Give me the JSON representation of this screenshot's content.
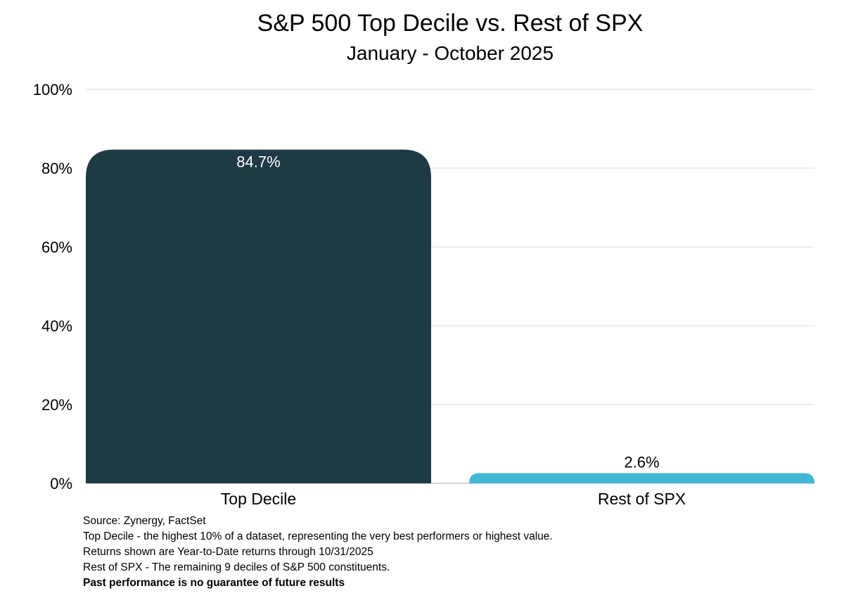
{
  "chart_data": {
    "type": "bar",
    "title": "S&P 500 Top Decile vs. Rest of SPX",
    "subtitle": "January - October 2025",
    "categories": [
      "Top Decile",
      "Rest of SPX"
    ],
    "values": [
      84.7,
      2.6
    ],
    "data_labels": [
      "84.7%",
      "2.6%"
    ],
    "colors": [
      "#1e3a45",
      "#42b7d6"
    ],
    "xlabel": "",
    "ylabel": "",
    "ylim": [
      0,
      100
    ],
    "yticks": [
      0,
      20,
      40,
      60,
      80,
      100
    ],
    "ytick_labels": [
      "0%",
      "20%",
      "40%",
      "60%",
      "80%",
      "100%"
    ],
    "grid": true,
    "legend": "none"
  },
  "notes": {
    "source": "Source: Zynergy, FactSet",
    "definition_top": "Top Decile - the highest 10% of a dataset, representing the very best performers or highest value.",
    "returns_note": "Returns shown are Year-to-Date returns through  10/31/2025",
    "definition_rest": "Rest of SPX - The remaining 9 deciles of S&P 500 constituents.",
    "disclaimer": "Past performance is no guarantee of future results"
  }
}
